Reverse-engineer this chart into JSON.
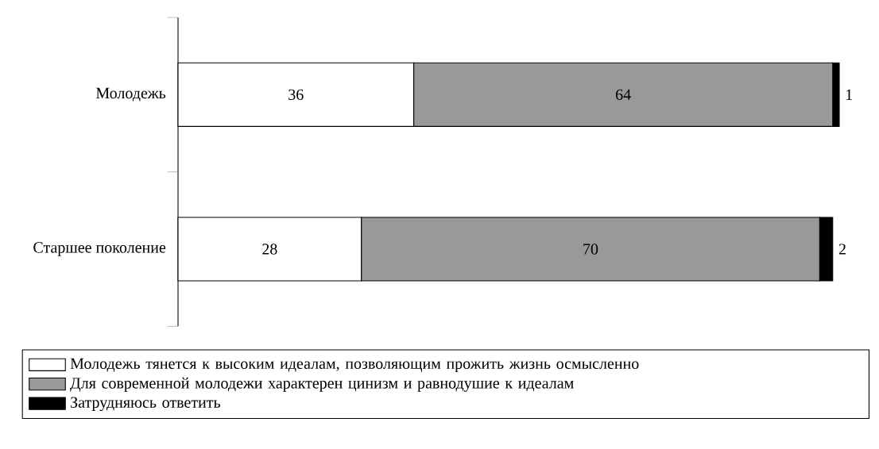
{
  "chart_data": {
    "type": "bar",
    "orientation": "horizontal",
    "stacked": true,
    "categories": [
      "Молодежь",
      "Старшее поколение"
    ],
    "series": [
      {
        "name": "Молодежь тянется к высоким идеалам, позволяющим прожить жизнь осмысленно",
        "color": "#ffffff",
        "values": [
          36,
          28
        ]
      },
      {
        "name": "Для современной молодежи характерен цинизм и равнодушие к идеалам",
        "color": "#999999",
        "values": [
          64,
          70
        ]
      },
      {
        "name": "Затрудняюсь ответить",
        "color": "#000000",
        "values": [
          1,
          2
        ]
      }
    ],
    "data_labels": true,
    "legend": "bottom"
  }
}
